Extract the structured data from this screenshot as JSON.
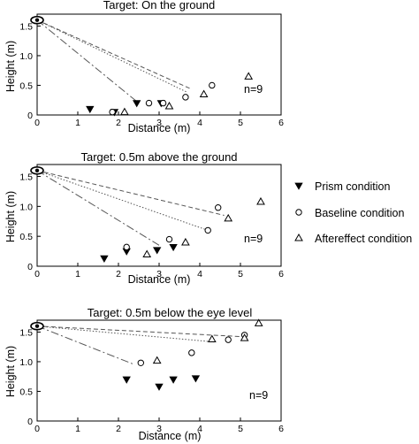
{
  "chart_data": [
    {
      "type": "scatter",
      "title": "Target: On the ground",
      "xlabel": "Distance (m)",
      "ylabel": "Height (m)",
      "xlim": [
        0,
        6
      ],
      "ylim": [
        0,
        1.7
      ],
      "xticks": [
        "0",
        "1",
        "2",
        "3",
        "4",
        "5",
        "6"
      ],
      "yticks": [
        "0",
        "0.5",
        "1.0",
        "1.5"
      ],
      "annotation": "n=9",
      "eye": {
        "x": 0,
        "y": 1.6
      },
      "series": [
        {
          "name": "Prism condition",
          "marker": "filled-triangle-down",
          "x": [
            1.3,
            1.9,
            2.45,
            3.05
          ],
          "y": [
            0.1,
            0.05,
            0.2,
            0.2
          ]
        },
        {
          "name": "Baseline condition",
          "marker": "open-circle",
          "x": [
            1.85,
            2.75,
            3.1,
            3.65,
            4.3
          ],
          "y": [
            0.05,
            0.2,
            0.2,
            0.3,
            0.5
          ]
        },
        {
          "name": "Aftereffect condition",
          "marker": "open-triangle-up",
          "x": [
            2.15,
            3.25,
            4.1,
            5.2
          ],
          "y": [
            0.05,
            0.15,
            0.35,
            0.65
          ]
        }
      ],
      "lines": [
        {
          "style": "dash-dot",
          "from": [
            0,
            1.6
          ],
          "to": [
            2.5,
            0.2
          ]
        },
        {
          "style": "dotted",
          "from": [
            0,
            1.6
          ],
          "to": [
            3.7,
            0.38
          ]
        },
        {
          "style": "dashed",
          "from": [
            0,
            1.6
          ],
          "to": [
            3.75,
            0.45
          ]
        }
      ]
    },
    {
      "type": "scatter",
      "title": "Target: 0.5m above the ground",
      "xlabel": "Distance (m)",
      "ylabel": "Height (m)",
      "xlim": [
        0,
        6
      ],
      "ylim": [
        0,
        1.7
      ],
      "xticks": [
        "0",
        "1",
        "2",
        "3",
        "4",
        "5",
        "6"
      ],
      "yticks": [
        "0",
        "0.5",
        "1.0",
        "1.5"
      ],
      "annotation": "n=9",
      "eye": {
        "x": 0,
        "y": 1.6
      },
      "series": [
        {
          "name": "Prism condition",
          "marker": "filled-triangle-down",
          "x": [
            1.65,
            2.2,
            2.95,
            3.35
          ],
          "y": [
            0.13,
            0.25,
            0.27,
            0.32
          ]
        },
        {
          "name": "Baseline condition",
          "marker": "open-circle",
          "x": [
            2.2,
            3.25,
            4.2,
            4.45
          ],
          "y": [
            0.32,
            0.45,
            0.6,
            0.98
          ]
        },
        {
          "name": "Aftereffect condition",
          "marker": "open-triangle-up",
          "x": [
            2.7,
            3.65,
            4.7,
            5.5
          ],
          "y": [
            0.2,
            0.4,
            0.8,
            1.08
          ]
        }
      ],
      "lines": [
        {
          "style": "dash-dot",
          "from": [
            0,
            1.6
          ],
          "to": [
            3.0,
            0.35
          ]
        },
        {
          "style": "dotted",
          "from": [
            0,
            1.6
          ],
          "to": [
            4.2,
            0.6
          ]
        },
        {
          "style": "dashed",
          "from": [
            0,
            1.6
          ],
          "to": [
            4.6,
            0.85
          ]
        }
      ]
    },
    {
      "type": "scatter",
      "title": "Target: 0.5m below the eye level",
      "xlabel": "Distance (m)",
      "ylabel": "Height (m)",
      "xlim": [
        0,
        6
      ],
      "ylim": [
        0,
        1.7
      ],
      "xticks": [
        "0",
        "1",
        "2",
        "3",
        "4",
        "5",
        "6"
      ],
      "yticks": [
        "0",
        "0.5",
        "1.0",
        "1.5"
      ],
      "annotation": "n=9",
      "eye": {
        "x": 0,
        "y": 1.6
      },
      "series": [
        {
          "name": "Prism condition",
          "marker": "filled-triangle-down",
          "x": [
            2.2,
            3.0,
            3.35,
            3.9
          ],
          "y": [
            0.7,
            0.58,
            0.7,
            0.72
          ]
        },
        {
          "name": "Baseline condition",
          "marker": "open-circle",
          "x": [
            2.55,
            3.8,
            4.7,
            5.1
          ],
          "y": [
            0.98,
            1.15,
            1.37,
            1.45
          ]
        },
        {
          "name": "Aftereffect condition",
          "marker": "open-triangle-up",
          "x": [
            2.95,
            4.3,
            5.1,
            5.45
          ],
          "y": [
            1.02,
            1.38,
            1.4,
            1.65
          ]
        }
      ],
      "lines": [
        {
          "style": "dash-dot",
          "from": [
            0,
            1.6
          ],
          "to": [
            2.4,
            0.95
          ]
        },
        {
          "style": "dotted",
          "from": [
            0,
            1.6
          ],
          "to": [
            4.4,
            1.33
          ]
        },
        {
          "style": "dashed",
          "from": [
            0,
            1.6
          ],
          "to": [
            5.1,
            1.42
          ]
        }
      ]
    }
  ],
  "legend": {
    "placement": "right",
    "items": [
      {
        "label": "Prism condition",
        "marker": "filled-triangle-down"
      },
      {
        "label": "Baseline condition",
        "marker": "open-circle"
      },
      {
        "label": "Aftereffect condition",
        "marker": "open-triangle-up"
      }
    ]
  }
}
